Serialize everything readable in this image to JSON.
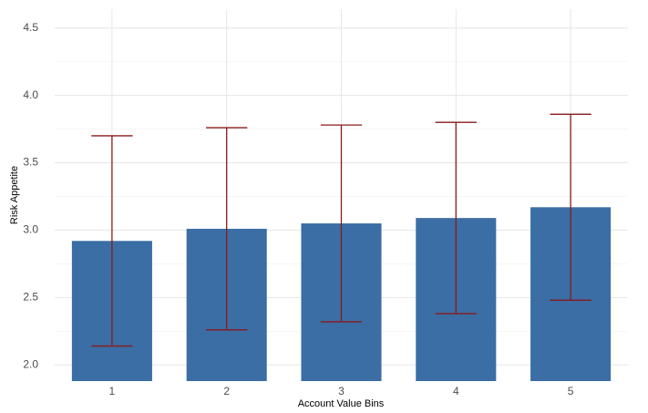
{
  "chart_data": {
    "type": "bar",
    "x_label": "Account Value Bins",
    "y_label": "Risk Appetite",
    "categories": [
      "1",
      "2",
      "3",
      "4",
      "5"
    ],
    "values": [
      2.92,
      3.01,
      3.05,
      3.09,
      3.17
    ],
    "errors": [
      0.78,
      0.75,
      0.73,
      0.71,
      0.69
    ],
    "color": "#3a6ea5",
    "error_color": "#8b1a1a",
    "ylim": [
      1.88,
      4.64
    ],
    "yticks": [
      {
        "value": 2,
        "label": "2.0"
      },
      2.5,
      {
        "value": 3,
        "label": "3.0"
      },
      3.5,
      {
        "value": 4,
        "label": "4.0"
      },
      4.5
    ],
    "yminor_ticks": [
      2.25,
      2.75,
      3.25,
      3.75,
      4.25
    ],
    "grid": true
  }
}
